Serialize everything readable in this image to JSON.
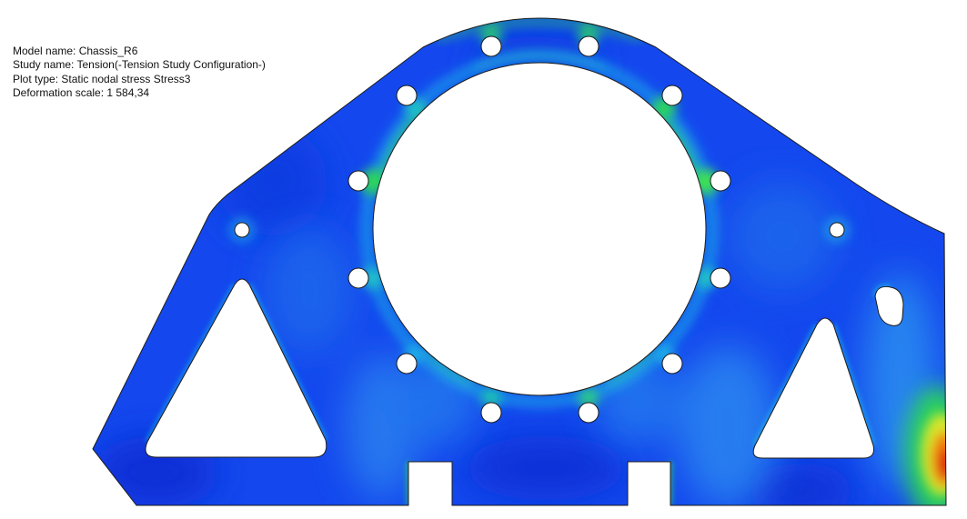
{
  "info": {
    "model_name": "Model name: Chassis_R6",
    "study_name": "Study name: Tension(-Tension Study Configuration-)",
    "plot_type": "Plot type: Static nodal stress Stress3",
    "deformation_scale": "Deformation scale: 1 584,34"
  },
  "colors": {
    "background": "#ffffff",
    "base_blue": "#1448ee",
    "deep_blue": "#0a2fd6",
    "light_blue": "#2a86f0",
    "cyan": "#1ec8e6",
    "green": "#2fe04a",
    "yellow": "#d8e62a",
    "orange": "#f07a10",
    "red": "#d81a10",
    "outline": "#1b1b1b"
  }
}
